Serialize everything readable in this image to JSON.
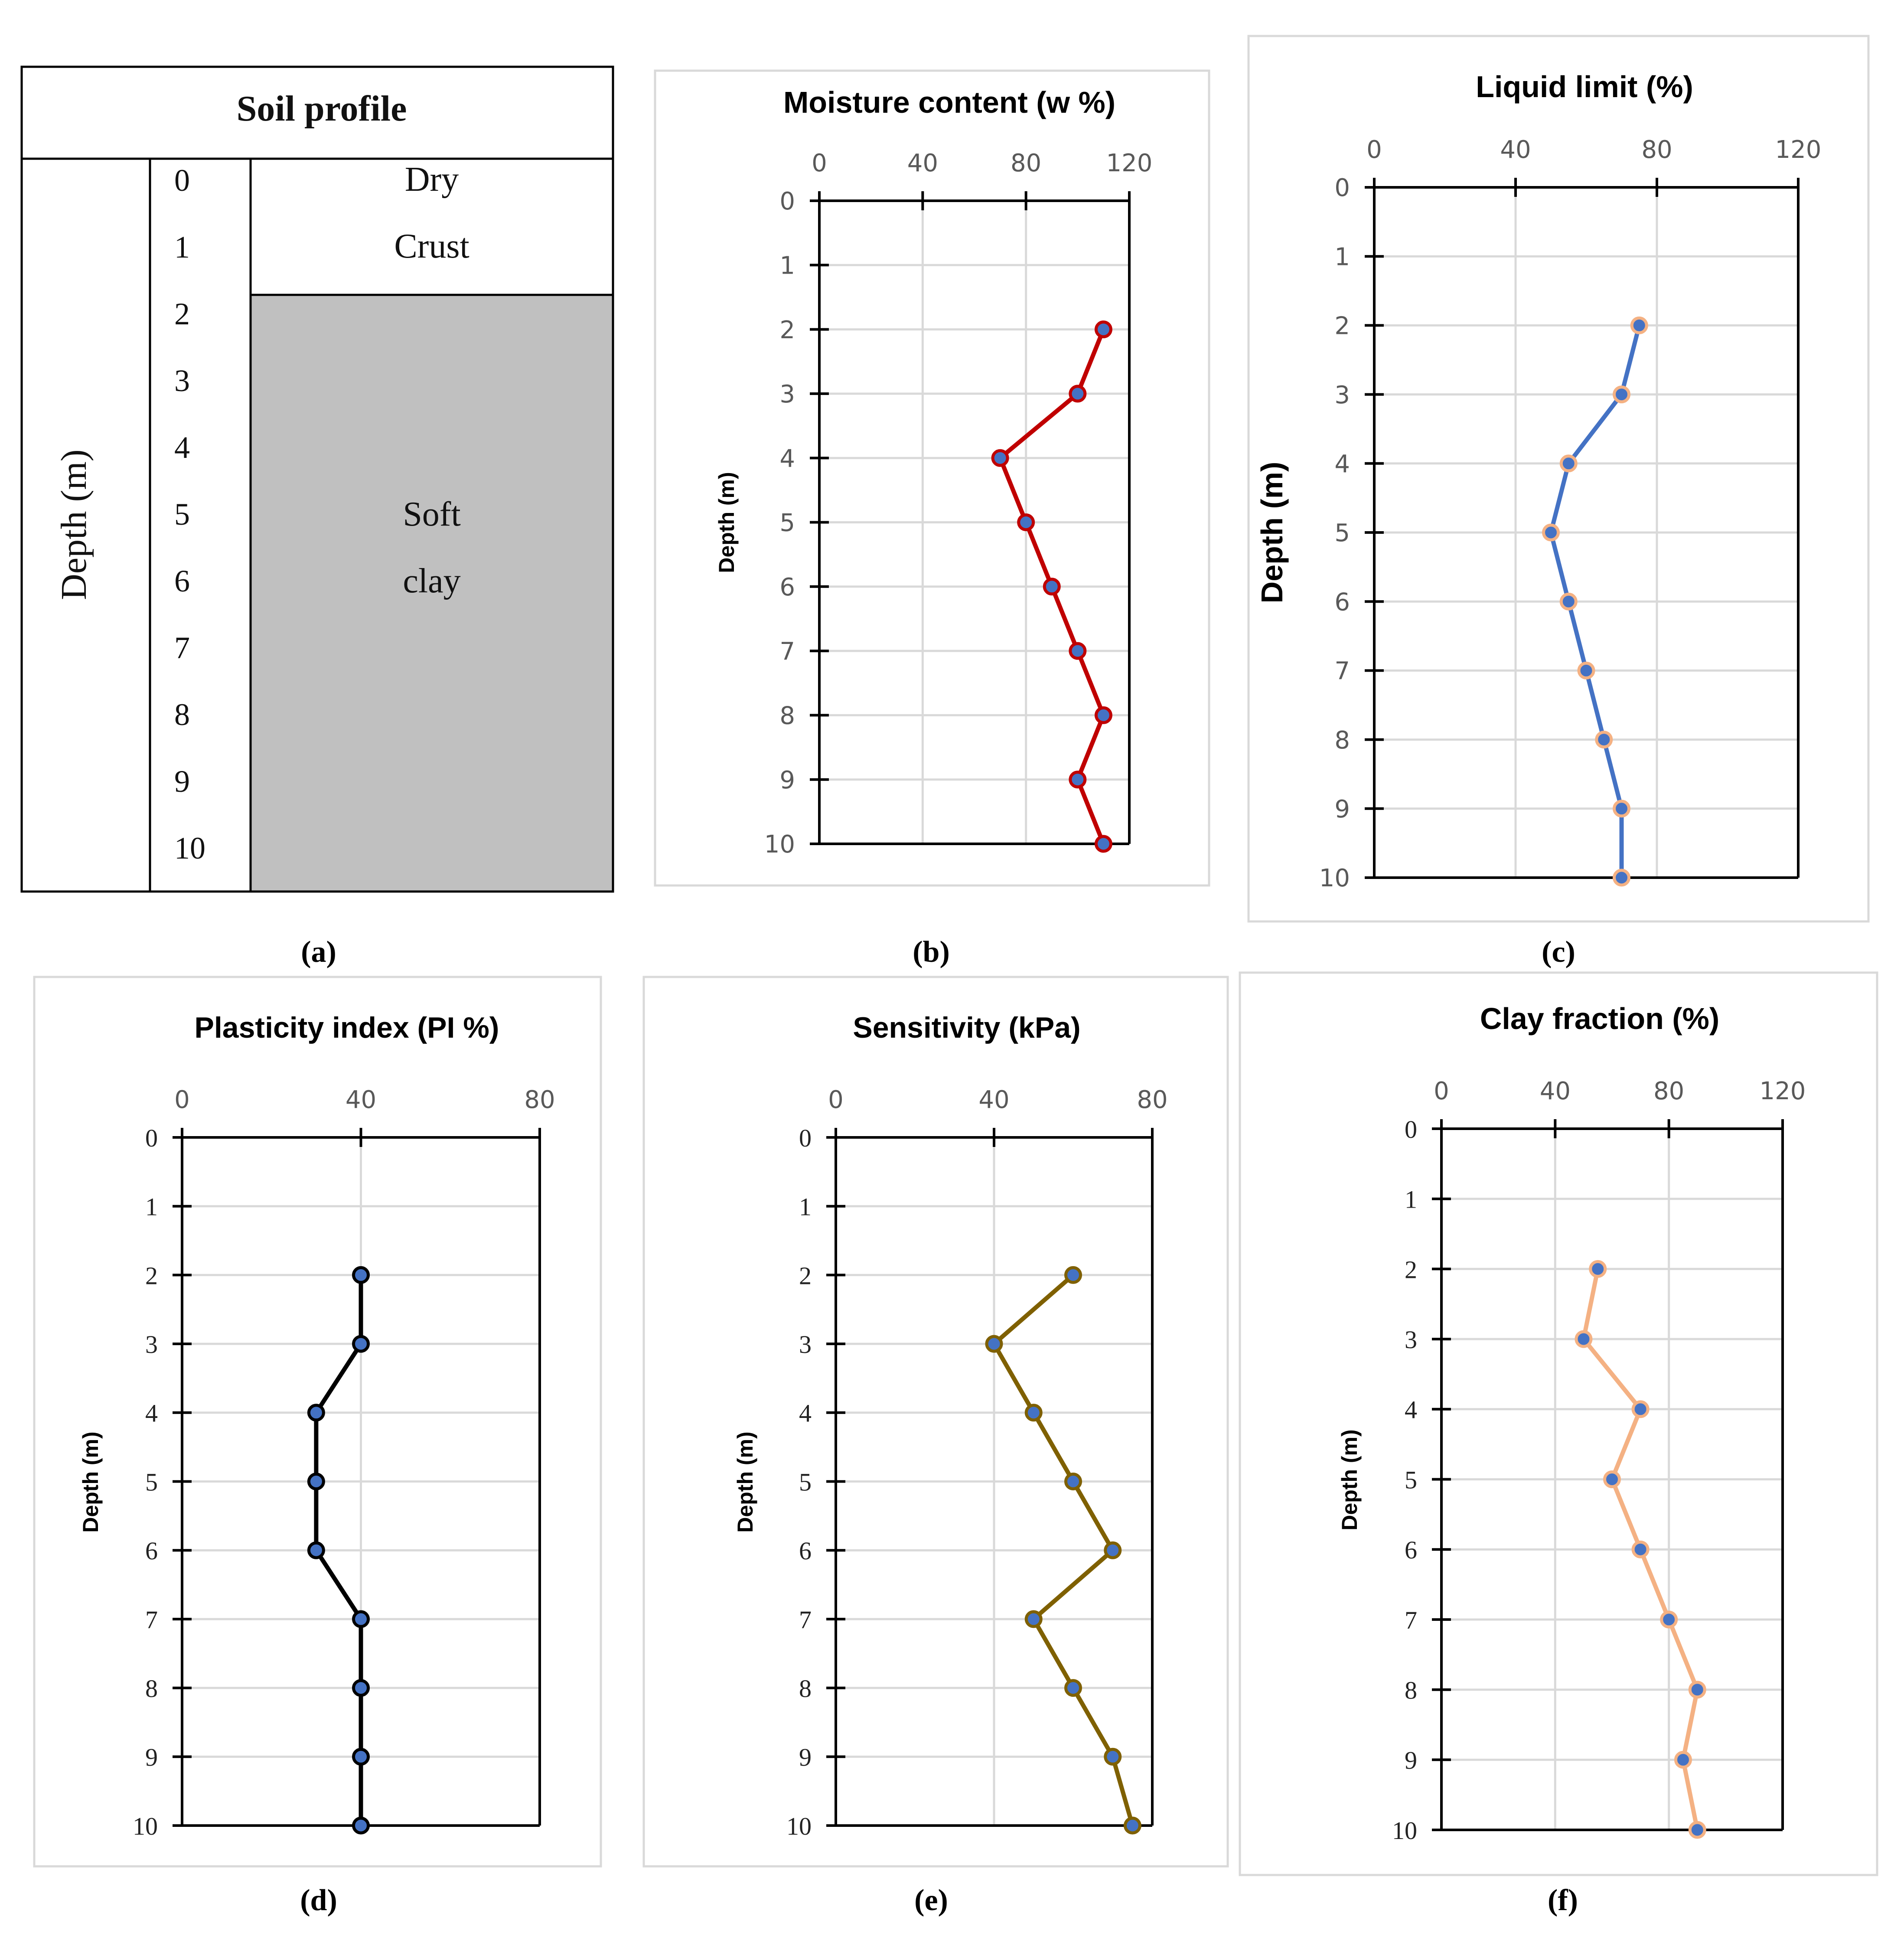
{
  "soil_profile": {
    "title": "Soil profile",
    "depth_label": "Depth (m)",
    "depths": [
      "0",
      "1",
      "2",
      "3",
      "4",
      "5",
      "6",
      "7",
      "8",
      "9",
      "10"
    ],
    "layers": [
      {
        "name_lines": [
          "Dry",
          "Crust"
        ],
        "from": 0,
        "to": 2,
        "color": "#ffffff"
      },
      {
        "name_lines": [
          "Soft",
          "clay"
        ],
        "from": 2,
        "to": 11,
        "color": "#c0c0c0"
      }
    ],
    "caption": "(a)"
  },
  "chart_data": [
    {
      "id": "b",
      "type": "line",
      "title": "Moisture content (w %)",
      "xlabel": "",
      "ylabel": "Depth (m)",
      "xlim": [
        0,
        120
      ],
      "xticks": [
        "0",
        "40",
        "80",
        "120"
      ],
      "ylim": [
        0,
        10
      ],
      "yticks": [
        "0",
        "1",
        "2",
        "3",
        "4",
        "5",
        "6",
        "7",
        "8",
        "9",
        "10"
      ],
      "x": [
        110,
        100,
        70,
        80,
        90,
        100,
        110,
        100,
        110
      ],
      "y": [
        2,
        3,
        4,
        5,
        6,
        7,
        8,
        9,
        10
      ],
      "line_color": "#c00000",
      "marker_fill": "#4472c4",
      "marker_edge": "#c00000",
      "caption": "(b)"
    },
    {
      "id": "c",
      "type": "line",
      "title": "Liquid limit (%)",
      "xlabel": "",
      "ylabel": "Depth (m)",
      "xlim": [
        0,
        120
      ],
      "xticks": [
        "0",
        "40",
        "80",
        "120"
      ],
      "ylim": [
        0,
        10
      ],
      "yticks": [
        "0",
        "1",
        "2",
        "3",
        "4",
        "5",
        "6",
        "7",
        "8",
        "9",
        "10"
      ],
      "x": [
        75,
        70,
        55,
        50,
        55,
        60,
        65,
        70,
        70
      ],
      "y": [
        2,
        3,
        4,
        5,
        6,
        7,
        8,
        9,
        10
      ],
      "line_color": "#4472c4",
      "marker_fill": "#4472c4",
      "marker_edge": "#f4b183",
      "caption": "(c)"
    },
    {
      "id": "d",
      "type": "line",
      "title": "Plasticity index (PI %)",
      "xlabel": "",
      "ylabel": "Depth (m)",
      "xlim": [
        0,
        80
      ],
      "xticks": [
        "0",
        "40",
        "80"
      ],
      "ylim": [
        0,
        10
      ],
      "yticks": [
        "0",
        "1",
        "2",
        "3",
        "4",
        "5",
        "6",
        "7",
        "8",
        "9",
        "10"
      ],
      "x": [
        40,
        40,
        30,
        30,
        30,
        40,
        40,
        40,
        40
      ],
      "y": [
        2,
        3,
        4,
        5,
        6,
        7,
        8,
        9,
        10
      ],
      "line_color": "#000000",
      "marker_fill": "#4472c4",
      "marker_edge": "#000000",
      "caption": "(d)"
    },
    {
      "id": "e",
      "type": "line",
      "title": "Sensitivity  (kPa)",
      "xlabel": "",
      "ylabel": "Depth (m)",
      "xlim": [
        0,
        80
      ],
      "xticks": [
        "0",
        "40",
        "80"
      ],
      "ylim": [
        0,
        10
      ],
      "yticks": [
        "0",
        "1",
        "2",
        "3",
        "4",
        "5",
        "6",
        "7",
        "8",
        "9",
        "10"
      ],
      "x": [
        60,
        40,
        50,
        60,
        70,
        50,
        60,
        70,
        75
      ],
      "y": [
        2,
        3,
        4,
        5,
        6,
        7,
        8,
        9,
        10
      ],
      "line_color": "#7f6000",
      "marker_fill": "#4472c4",
      "marker_edge": "#7f6000",
      "caption": "(e)"
    },
    {
      "id": "f",
      "type": "line",
      "title": "Clay fraction (%)",
      "xlabel": "",
      "ylabel": "Depth (m)",
      "xlim": [
        0,
        120
      ],
      "xticks": [
        "0",
        "40",
        "80",
        "120"
      ],
      "ylim": [
        0,
        10
      ],
      "yticks": [
        "0",
        "1",
        "2",
        "3",
        "4",
        "5",
        "6",
        "7",
        "8",
        "9",
        "10"
      ],
      "x": [
        55,
        50,
        70,
        60,
        70,
        80,
        90,
        85,
        90
      ],
      "y": [
        2,
        3,
        4,
        5,
        6,
        7,
        8,
        9,
        10
      ],
      "line_color": "#f4b183",
      "marker_fill": "#4472c4",
      "marker_edge": "#f4b183",
      "caption": "(f)"
    }
  ]
}
